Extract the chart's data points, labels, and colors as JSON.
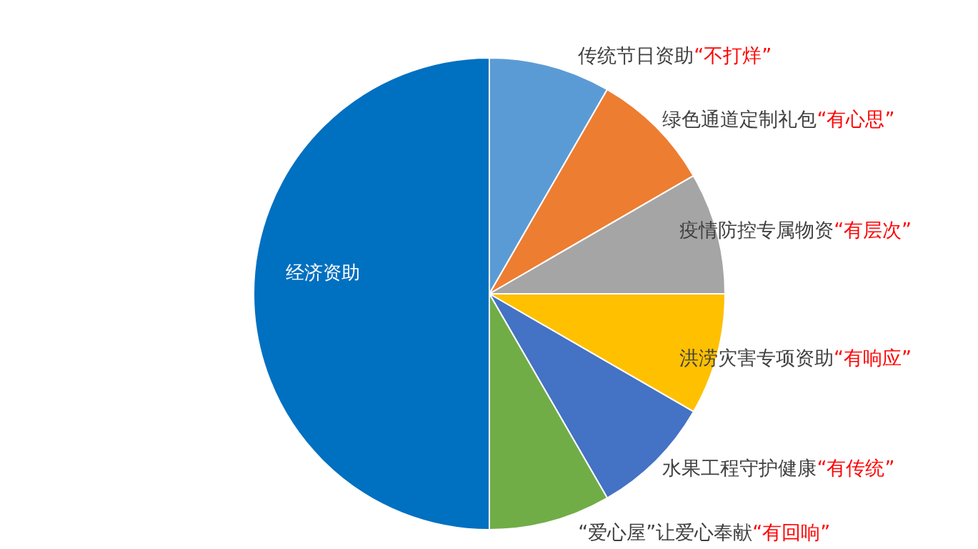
{
  "chart_data": {
    "type": "pie",
    "categories": [
      "传统节日资助“不打烊”",
      "绿色通道定制礼包“有心思”",
      "疫情防控专属物资“有层次”",
      "洪涝灾害专项资助“有响应”",
      "水果工程守护健康“有传统”",
      "“爱心屋”让爱心奉献“有回响”",
      "经济资助"
    ],
    "values": [
      8.33,
      8.33,
      8.34,
      8.33,
      8.33,
      8.34,
      50
    ],
    "colors": [
      "#5b9bd5",
      "#ed7d31",
      "#a5a5a5",
      "#ffc000",
      "#4472c4",
      "#70ad47",
      "#0070c0"
    ],
    "legend": false
  }
}
